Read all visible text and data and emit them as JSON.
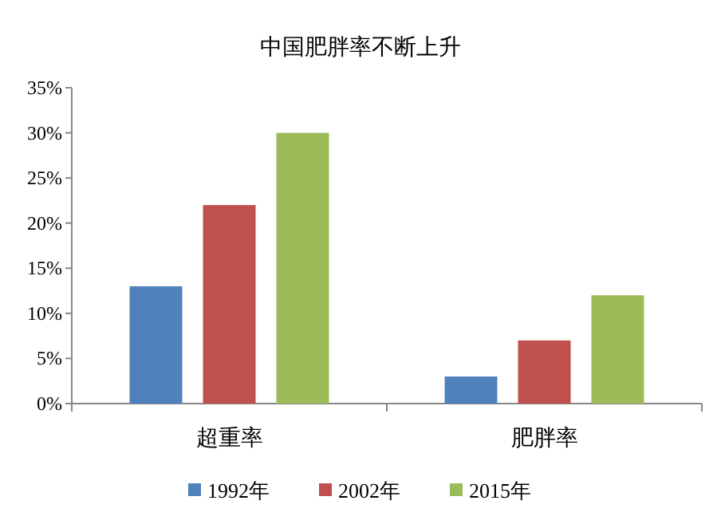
{
  "chart_data": {
    "type": "bar",
    "title": "中国肥胖率不断上升",
    "categories": [
      "超重率",
      "肥胖率"
    ],
    "series": [
      {
        "name": "1992年",
        "color": "#4f81bd",
        "values": [
          13,
          3
        ]
      },
      {
        "name": "2002年",
        "color": "#c0504d",
        "values": [
          22,
          7
        ]
      },
      {
        "name": "2015年",
        "color": "#9bbb59",
        "values": [
          30,
          12
        ]
      }
    ],
    "ylim": [
      0,
      35
    ],
    "yticks": [
      {
        "value": 0,
        "label": "0%"
      },
      {
        "value": 5,
        "label": "5%"
      },
      {
        "value": 10,
        "label": "10%"
      },
      {
        "value": 15,
        "label": "15%"
      },
      {
        "value": 20,
        "label": "20%"
      },
      {
        "value": 25,
        "label": "25%"
      },
      {
        "value": 30,
        "label": "30%"
      },
      {
        "value": 35,
        "label": "35%"
      }
    ],
    "legend": "bottom",
    "grid": false
  }
}
